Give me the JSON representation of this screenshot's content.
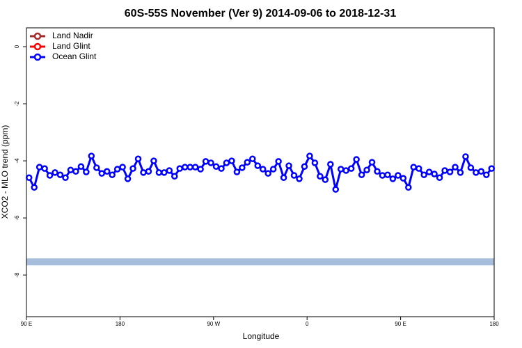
{
  "chart_data": {
    "type": "line",
    "title": "60S-55S November (Ver 9)   2014-09-06 to 2018-12-31",
    "xlabel": "Longitude",
    "ylabel": "XCO2 - MLO trend (ppm)",
    "xlim": [
      90,
      540
    ],
    "ylim": [
      -9.46,
      0.66
    ],
    "xticks": [
      {
        "value": 90,
        "label": "90 E"
      },
      180,
      {
        "value": 270,
        "label": "90 W"
      },
      {
        "value": 360,
        "label": "0"
      },
      {
        "value": 450,
        "label": "90 E"
      },
      {
        "value": 540,
        "label": "180"
      }
    ],
    "yticks": [
      0,
      -2,
      -4,
      -6,
      -8
    ],
    "legend": "top-left",
    "reference_band": {
      "value": -7.54,
      "color": "#a6bddb"
    },
    "x": [
      92.5,
      97.5,
      102.5,
      107.5,
      112.5,
      117.5,
      122.5,
      127.5,
      132.5,
      137.5,
      142.5,
      147.5,
      152.5,
      157.5,
      162.5,
      167.5,
      172.5,
      177.5,
      182.5,
      187.5,
      192.5,
      197.5,
      202.5,
      207.5,
      212.5,
      217.5,
      222.5,
      227.5,
      232.5,
      237.5,
      242.5,
      247.5,
      252.5,
      257.5,
      262.5,
      267.5,
      272.5,
      277.5,
      282.5,
      287.5,
      292.5,
      297.5,
      302.5,
      307.5,
      312.5,
      317.5,
      322.5,
      327.5,
      332.5,
      337.5,
      342.5,
      347.5,
      352.5,
      357.5,
      362.5,
      367.5,
      372.5,
      377.5,
      382.5,
      387.5,
      392.5,
      397.5,
      402.5,
      407.5,
      412.5,
      417.5,
      422.5,
      427.5,
      432.5,
      437.5,
      442.5,
      447.5,
      452.5,
      457.5,
      462.5,
      467.5,
      472.5,
      477.5,
      482.5,
      487.5,
      492.5,
      497.5,
      502.5,
      507.5,
      512.5,
      517.5,
      522.5,
      527.5,
      532.5,
      537.5
    ],
    "series": [
      {
        "name": "Land Nadir",
        "color": "#a52a2a"
      },
      {
        "name": "Land Glint",
        "color": "#ff0000"
      },
      {
        "name": "Ocean Glint",
        "color": "#0000ff",
        "values": [
          -4.59,
          -4.93,
          -4.22,
          -4.27,
          -4.51,
          -4.41,
          -4.49,
          -4.59,
          -4.32,
          -4.37,
          -4.2,
          -4.39,
          -3.83,
          -4.24,
          -4.44,
          -4.37,
          -4.49,
          -4.29,
          -4.22,
          -4.63,
          -4.27,
          -3.93,
          -4.41,
          -4.37,
          -4.0,
          -4.41,
          -4.41,
          -4.34,
          -4.54,
          -4.27,
          -4.22,
          -4.22,
          -4.22,
          -4.29,
          -4.02,
          -4.07,
          -4.2,
          -4.27,
          -4.07,
          -4.0,
          -4.39,
          -4.24,
          -4.05,
          -3.93,
          -4.17,
          -4.29,
          -4.44,
          -4.29,
          -4.02,
          -4.59,
          -4.17,
          -4.51,
          -4.63,
          -4.2,
          -3.83,
          -4.07,
          -4.54,
          -4.66,
          -4.12,
          -5.0,
          -4.29,
          -4.34,
          -4.27,
          -3.95,
          -4.49,
          -4.32,
          -4.05,
          -4.37,
          -4.51,
          -4.49,
          -4.63,
          -4.51,
          -4.61,
          -4.93,
          -4.22,
          -4.27,
          -4.49,
          -4.39,
          -4.46,
          -4.59,
          -4.34,
          -4.39,
          -4.22,
          -4.41,
          -3.85,
          -4.24,
          -4.41,
          -4.37,
          -4.49,
          -4.27
        ]
      }
    ]
  }
}
